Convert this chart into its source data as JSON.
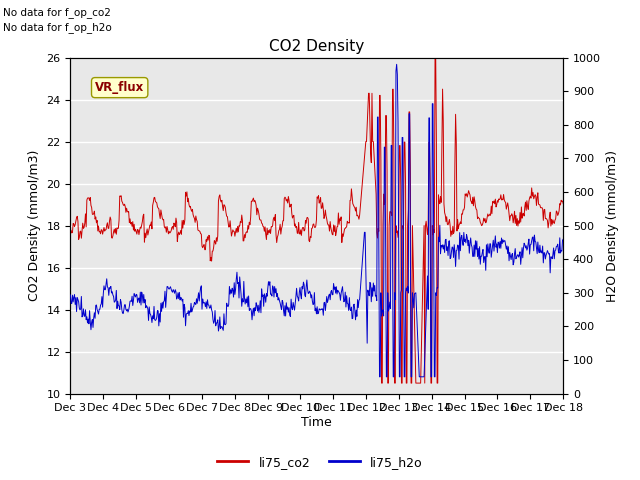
{
  "title": "CO2 Density",
  "ylabel_left": "CO2 Density (mmol/m3)",
  "ylabel_right": "H2O Density (mmol/m3)",
  "xlabel": "Time",
  "ylim_left": [
    10,
    26
  ],
  "ylim_right": [
    0,
    1000
  ],
  "background_color": "#e8e8e8",
  "fig_background": "#ffffff",
  "no_data_text": [
    "No data for f_op_co2",
    "No data for f_op_h2o"
  ],
  "vr_flux_label": "VR_flux",
  "vr_flux_color": "#8b0000",
  "vr_flux_bg": "#ffffcc",
  "legend_items": [
    "li75_co2",
    "li75_h2o"
  ],
  "legend_colors": [
    "#cc0000",
    "#0000cc"
  ],
  "line_color_co2": "#cc0000",
  "line_color_h2o": "#0000cc",
  "x_tick_labels": [
    "Dec 3",
    "Dec 4",
    "Dec 5",
    "Dec 6",
    "Dec 7",
    "Dec 8",
    "Dec 9",
    "Dec 10",
    "Dec 11",
    "Dec 12",
    "Dec 13",
    "Dec 14",
    "Dec 15",
    "Dec 16",
    "Dec 17",
    "Dec 18"
  ],
  "y_left_ticks": [
    10,
    12,
    14,
    16,
    18,
    20,
    22,
    24,
    26
  ],
  "y_right_ticks": [
    0,
    100,
    200,
    300,
    400,
    500,
    600,
    700,
    800,
    900,
    1000
  ],
  "grid_color": "#ffffff",
  "linewidth": 0.8
}
